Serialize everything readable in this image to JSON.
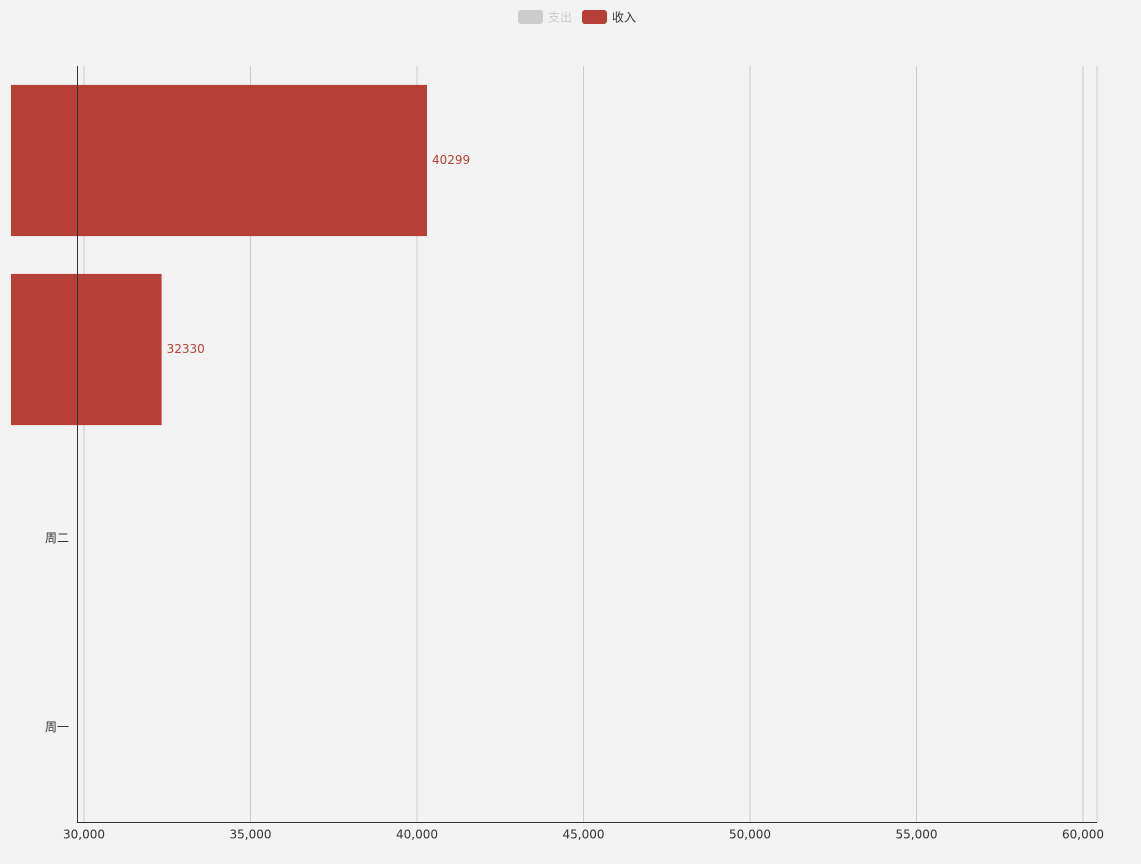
{
  "chart_data": {
    "type": "bar",
    "orientation": "horizontal",
    "categories": [
      "周一",
      "周二",
      null,
      null
    ],
    "series": [
      {
        "name": "支出",
        "color": "#cccccc",
        "visible": false,
        "values": [
          null,
          null,
          null,
          null
        ]
      },
      {
        "name": "收入",
        "color": "#b64037",
        "visible": true,
        "values": [
          null,
          null,
          32330,
          40299
        ]
      }
    ],
    "xlim": [
      29790,
      60420
    ],
    "xticks": [
      {
        "value": 30000,
        "label": "30,000"
      },
      {
        "value": 35000,
        "label": "35,000"
      },
      {
        "value": 40000,
        "label": "40,000"
      },
      {
        "value": 45000,
        "label": "45,000"
      },
      {
        "value": 50000,
        "label": "50,000"
      },
      {
        "value": 55000,
        "label": "55,000"
      },
      {
        "value": 60000,
        "label": "60,000"
      }
    ],
    "grid": true,
    "legend": "top"
  }
}
